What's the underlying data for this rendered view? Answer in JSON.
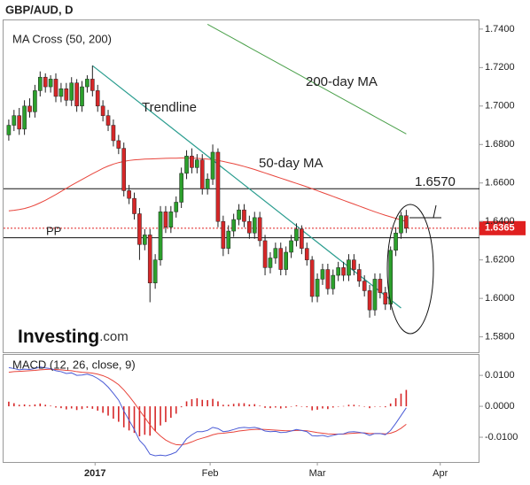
{
  "title": "GBP/AUD, D",
  "brand": {
    "main": "Investing",
    "suffix": ".com"
  },
  "chart_data": [
    {
      "type": "candlestick",
      "label": "MA Cross (50, 200)",
      "xlim": [
        -1,
        90
      ],
      "ylim": [
        1.572,
        1.745
      ],
      "yticks": [
        {
          "value": 1.58,
          "label": "1.5800"
        },
        {
          "value": 1.6,
          "label": "1.6000"
        },
        {
          "value": 1.62,
          "label": "1.6200"
        },
        {
          "value": 1.64,
          "label": "1.6400"
        },
        {
          "value": 1.66,
          "label": "1.6600"
        },
        {
          "value": 1.68,
          "label": "1.6800"
        },
        {
          "value": 1.7,
          "label": "1.7000"
        },
        {
          "value": 1.72,
          "label": "1.7200"
        },
        {
          "value": 1.74,
          "label": "1.7400"
        }
      ],
      "up_color": "#2ca02c",
      "down_color": "#d62728",
      "open": [
        1.685,
        1.69,
        1.695,
        1.688,
        1.7,
        1.697,
        1.708,
        1.715,
        1.71,
        1.714,
        1.705,
        1.709,
        1.703,
        1.712,
        1.7,
        1.71,
        1.714,
        1.708,
        1.7,
        1.695,
        1.69,
        1.682,
        1.678,
        1.656,
        1.652,
        1.644,
        1.628,
        1.633,
        1.608,
        1.62,
        1.645,
        1.637,
        1.645,
        1.65,
        1.665,
        1.674,
        1.668,
        1.672,
        1.657,
        1.662,
        1.676,
        1.64,
        1.626,
        1.635,
        1.641,
        1.646,
        1.64,
        1.634,
        1.642,
        1.63,
        1.616,
        1.621,
        1.626,
        1.615,
        1.624,
        1.63,
        1.636,
        1.626,
        1.62,
        1.601,
        1.61,
        1.615,
        1.605,
        1.612,
        1.616,
        1.612,
        1.62,
        1.615,
        1.609,
        1.604,
        1.594,
        1.61,
        1.603,
        1.597,
        1.625,
        1.634,
        1.643
      ],
      "high": [
        1.693,
        1.698,
        1.699,
        1.703,
        1.704,
        1.711,
        1.718,
        1.717,
        1.716,
        1.717,
        1.712,
        1.712,
        1.715,
        1.714,
        1.713,
        1.716,
        1.721,
        1.711,
        1.703,
        1.698,
        1.693,
        1.685,
        1.681,
        1.659,
        1.655,
        1.647,
        1.636,
        1.636,
        1.623,
        1.648,
        1.648,
        1.648,
        1.653,
        1.668,
        1.677,
        1.678,
        1.675,
        1.675,
        1.665,
        1.68,
        1.678,
        1.643,
        1.638,
        1.644,
        1.649,
        1.649,
        1.643,
        1.645,
        1.645,
        1.633,
        1.624,
        1.629,
        1.629,
        1.627,
        1.633,
        1.639,
        1.638,
        1.629,
        1.622,
        1.613,
        1.618,
        1.618,
        1.615,
        1.619,
        1.619,
        1.623,
        1.623,
        1.618,
        1.612,
        1.607,
        1.613,
        1.613,
        1.606,
        1.627,
        1.637,
        1.645,
        1.646
      ],
      "low": [
        1.682,
        1.687,
        1.685,
        1.685,
        1.694,
        1.694,
        1.705,
        1.707,
        1.707,
        1.702,
        1.702,
        1.7,
        1.7,
        1.697,
        1.697,
        1.707,
        1.705,
        1.697,
        1.692,
        1.687,
        1.679,
        1.675,
        1.653,
        1.649,
        1.641,
        1.62,
        1.625,
        1.598,
        1.605,
        1.617,
        1.634,
        1.634,
        1.642,
        1.647,
        1.662,
        1.665,
        1.665,
        1.654,
        1.654,
        1.659,
        1.637,
        1.622,
        1.623,
        1.632,
        1.638,
        1.637,
        1.631,
        1.631,
        1.627,
        1.612,
        1.613,
        1.618,
        1.612,
        1.612,
        1.621,
        1.627,
        1.623,
        1.617,
        1.598,
        1.598,
        1.607,
        1.602,
        1.602,
        1.609,
        1.609,
        1.609,
        1.612,
        1.606,
        1.601,
        1.59,
        1.591,
        1.6,
        1.594,
        1.594,
        1.622,
        1.631,
        1.634
      ],
      "close": [
        1.69,
        1.695,
        1.688,
        1.7,
        1.697,
        1.708,
        1.715,
        1.71,
        1.714,
        1.705,
        1.709,
        1.703,
        1.712,
        1.7,
        1.71,
        1.714,
        1.708,
        1.7,
        1.695,
        1.69,
        1.682,
        1.678,
        1.656,
        1.652,
        1.644,
        1.628,
        1.633,
        1.608,
        1.62,
        1.645,
        1.637,
        1.645,
        1.65,
        1.665,
        1.674,
        1.668,
        1.672,
        1.657,
        1.662,
        1.676,
        1.64,
        1.626,
        1.635,
        1.641,
        1.646,
        1.64,
        1.634,
        1.642,
        1.63,
        1.616,
        1.621,
        1.626,
        1.615,
        1.624,
        1.63,
        1.636,
        1.626,
        1.62,
        1.601,
        1.61,
        1.615,
        1.605,
        1.612,
        1.616,
        1.612,
        1.62,
        1.615,
        1.609,
        1.604,
        1.594,
        1.61,
        1.603,
        1.597,
        1.625,
        1.634,
        1.643,
        1.6365
      ],
      "series": [
        {
          "name": "50-day MA",
          "color": "#e8453c",
          "values": [
            1.6455,
            1.6458,
            1.6462,
            1.6467,
            1.6475,
            1.6485,
            1.6497,
            1.651,
            1.6525,
            1.654,
            1.6556,
            1.6572,
            1.6588,
            1.6603,
            1.6618,
            1.6633,
            1.6648,
            1.6662,
            1.6676,
            1.6688,
            1.6698,
            1.6706,
            1.6712,
            1.6717,
            1.672,
            1.6722,
            1.6724,
            1.6725,
            1.6726,
            1.6727,
            1.6728,
            1.6729,
            1.6729,
            1.673,
            1.673,
            1.6729,
            1.6728,
            1.6726,
            1.6724,
            1.6721,
            1.6717,
            1.6712,
            1.6706,
            1.67,
            1.6693,
            1.6686,
            1.6678,
            1.667,
            1.6661,
            1.6652,
            1.6643,
            1.6634,
            1.6625,
            1.6616,
            1.6607,
            1.6598,
            1.6589,
            1.658,
            1.657,
            1.656,
            1.655,
            1.654,
            1.653,
            1.652,
            1.651,
            1.65,
            1.649,
            1.648,
            1.647,
            1.646,
            1.645,
            1.6441,
            1.6432,
            1.6424,
            1.6416,
            1.6408,
            1.64
          ]
        },
        {
          "name": "200-day MA",
          "color": "#4aa04a",
          "values": [
            null,
            null,
            null,
            null,
            null,
            null,
            null,
            null,
            null,
            null,
            null,
            null,
            null,
            null,
            null,
            null,
            null,
            null,
            null,
            null,
            null,
            null,
            null,
            null,
            null,
            null,
            null,
            null,
            null,
            null,
            null,
            null,
            null,
            null,
            null,
            null,
            null,
            null,
            1.7425,
            1.741,
            1.7395,
            1.738,
            1.7365,
            1.735,
            1.7335,
            1.732,
            1.7305,
            1.729,
            1.7275,
            1.726,
            1.7245,
            1.723,
            1.7215,
            1.72,
            1.7185,
            1.717,
            1.7155,
            1.714,
            1.7125,
            1.711,
            1.7095,
            1.708,
            1.7065,
            1.705,
            1.7035,
            1.702,
            1.7005,
            1.699,
            1.6975,
            1.696,
            1.6945,
            1.693,
            1.6915,
            1.69,
            1.6885,
            1.687,
            1.6855
          ]
        }
      ],
      "trendline": {
        "name": "Trendline",
        "color": "#2a9d8f",
        "x": [
          16,
          75
        ],
        "y": [
          1.721,
          1.595
        ]
      },
      "levels": [
        {
          "label": "1.6570",
          "value": 1.657
        },
        {
          "label": "PP",
          "value": 1.6315
        }
      ],
      "last_price": {
        "value": 1.6365,
        "label": "1.6365",
        "color": "#e02020"
      }
    },
    {
      "type": "macd",
      "label": "MACD (12, 26, close, 9)",
      "xlim": [
        -1,
        90
      ],
      "ylim": [
        -0.018,
        0.0169
      ],
      "yticks": [
        {
          "value": -0.01,
          "label": "-0.0100"
        },
        {
          "value": 0,
          "label": "0.0000"
        },
        {
          "value": 0.01,
          "label": "0.0100"
        }
      ],
      "xticks": [
        {
          "value": 16.5,
          "label": "2017"
        },
        {
          "value": 38.5,
          "label": "Feb"
        },
        {
          "value": 59,
          "label": "Mar"
        },
        {
          "value": 82.5,
          "label": "Apr"
        }
      ],
      "macd": {
        "color": "#4a5bd6",
        "values": [
          0.0125,
          0.0122,
          0.0118,
          0.012,
          0.0119,
          0.0122,
          0.0127,
          0.0124,
          0.0122,
          0.0115,
          0.0112,
          0.0106,
          0.0108,
          0.01,
          0.0101,
          0.0104,
          0.0099,
          0.009,
          0.0078,
          0.0062,
          0.0042,
          0.002,
          -0.0015,
          -0.0045,
          -0.0075,
          -0.011,
          -0.0128,
          -0.0155,
          -0.016,
          -0.0158,
          -0.016,
          -0.0155,
          -0.0148,
          -0.0128,
          -0.0105,
          -0.0092,
          -0.0082,
          -0.0082,
          -0.0078,
          -0.0068,
          -0.0072,
          -0.0082,
          -0.008,
          -0.0075,
          -0.007,
          -0.0068,
          -0.007,
          -0.0068,
          -0.0072,
          -0.008,
          -0.0082,
          -0.0081,
          -0.0085,
          -0.0084,
          -0.008,
          -0.0075,
          -0.0078,
          -0.0082,
          -0.0095,
          -0.0096,
          -0.0094,
          -0.0098,
          -0.0094,
          -0.009,
          -0.0089,
          -0.0083,
          -0.0082,
          -0.0084,
          -0.0087,
          -0.0094,
          -0.0088,
          -0.0088,
          -0.0092,
          -0.0078,
          -0.0055,
          -0.003,
          -0.0005
        ]
      },
      "signal": {
        "color": "#e8453c",
        "values": [
          0.011,
          0.0112,
          0.0113,
          0.0114,
          0.0115,
          0.0116,
          0.0118,
          0.0119,
          0.012,
          0.0119,
          0.0118,
          0.0116,
          0.0115,
          0.0112,
          0.011,
          0.0109,
          0.0107,
          0.0104,
          0.0099,
          0.0092,
          0.0082,
          0.007,
          0.0053,
          0.0033,
          0.0011,
          -0.0013,
          -0.0036,
          -0.006,
          -0.008,
          -0.0096,
          -0.0109,
          -0.0118,
          -0.0124,
          -0.0125,
          -0.0121,
          -0.0115,
          -0.0108,
          -0.0103,
          -0.0098,
          -0.0092,
          -0.0088,
          -0.0087,
          -0.0085,
          -0.0083,
          -0.008,
          -0.0078,
          -0.0076,
          -0.0075,
          -0.0074,
          -0.0075,
          -0.0076,
          -0.0077,
          -0.0078,
          -0.0079,
          -0.0079,
          -0.0078,
          -0.0078,
          -0.0079,
          -0.0082,
          -0.0085,
          -0.0087,
          -0.0089,
          -0.009,
          -0.009,
          -0.009,
          -0.0088,
          -0.0087,
          -0.0086,
          -0.0086,
          -0.0088,
          -0.0088,
          -0.0088,
          -0.0089,
          -0.0087,
          -0.0081,
          -0.0071,
          -0.0058
        ]
      },
      "histogram": {
        "color": "#d62728",
        "values": [
          0.0015,
          0.001,
          0.0005,
          0.0006,
          0.0004,
          0.0006,
          0.0009,
          0.0005,
          0.0002,
          -0.0004,
          -0.0006,
          -0.001,
          -0.0007,
          -0.0012,
          -0.0009,
          -0.0005,
          -0.0008,
          -0.0014,
          -0.0021,
          -0.003,
          -0.004,
          -0.005,
          -0.0068,
          -0.0078,
          -0.0086,
          -0.0097,
          -0.0092,
          -0.0095,
          -0.008,
          -0.0062,
          -0.0051,
          -0.0037,
          -0.0024,
          -0.0003,
          0.0016,
          0.0023,
          0.0026,
          0.0021,
          0.002,
          0.0024,
          0.0016,
          0.0005,
          0.0005,
          0.0008,
          0.001,
          0.001,
          0.0006,
          0.0007,
          0.0002,
          -0.0005,
          -0.0006,
          -0.0004,
          -0.0007,
          -0.0005,
          -0.0001,
          0.0003,
          0.0,
          -0.0003,
          -0.0013,
          -0.0011,
          -0.0007,
          -0.0009,
          -0.0004,
          0.0,
          0.0001,
          0.0005,
          0.0005,
          0.0002,
          -0.0001,
          -0.0006,
          0.0,
          0.0,
          -0.0003,
          0.0009,
          0.0026,
          0.0041,
          0.0053
        ]
      }
    }
  ]
}
